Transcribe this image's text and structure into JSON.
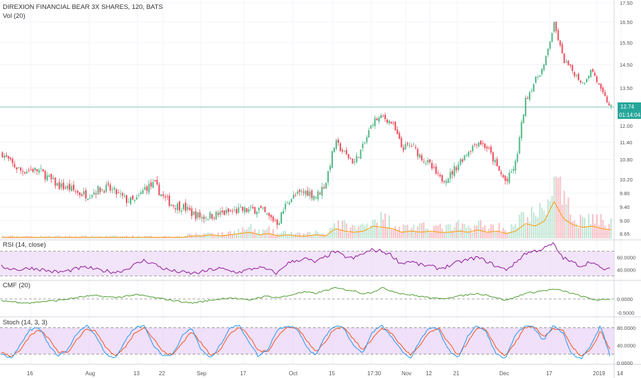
{
  "header": {
    "symbol_line": "DIREXION FINANCIAL BEAR 3X SHARES, 120, BATS",
    "volume_label": "Vol (20)"
  },
  "price_badges": {
    "last_price": "12.74",
    "countdown": "01:14:04"
  },
  "colors": {
    "up": "#53b987",
    "down": "#eb4d5c",
    "rsi_line": "#8e1599",
    "rsi_band": "#ecd9f7",
    "cmf_line": "#4c9c2e",
    "stoch_k": "#2196f3",
    "stoch_d": "#f4511e",
    "stoch_band": "#ead3f6",
    "volume_ma": "#ff9800",
    "price_line": "#5ab0a0",
    "badge": "#26a69a"
  },
  "chart_data": [
    {
      "type": "candlestick",
      "title": "DIREXION FINANCIAL BEAR 3X SHARES, 120, BATS",
      "y_ticks": [
        "17.50",
        "16.50",
        "15.50",
        "14.50",
        "13.50",
        "12.00",
        "11.40",
        "10.80",
        "10.20",
        "9.80",
        "9.40",
        "9.00",
        "8.65"
      ],
      "x_ticks": [
        "16",
        "Aug",
        "13",
        "22",
        "Sep",
        "17",
        "Oct",
        "15",
        "17:30",
        "Nov",
        "12",
        "21",
        "Dec",
        "17",
        "2019",
        "14"
      ],
      "last_price": 12.74,
      "series": [
        {
          "name": "price",
          "values": [
            11.0,
            10.65,
            10.45,
            10.5,
            10.45,
            10.2,
            10.0,
            9.95,
            9.8,
            9.75,
            9.9,
            9.95,
            9.8,
            9.6,
            9.55,
            9.95,
            10.05,
            9.65,
            9.45,
            9.4,
            9.2,
            9.1,
            9.15,
            9.2,
            9.25,
            9.3,
            9.3,
            9.35,
            9.1,
            8.95,
            9.6,
            9.75,
            9.85,
            9.7,
            10.1,
            11.4,
            11.0,
            10.7,
            11.3,
            12.2,
            12.35,
            12.1,
            11.2,
            11.3,
            10.9,
            10.6,
            10.2,
            10.3,
            10.7,
            11.1,
            11.45,
            11.2,
            10.55,
            10.1,
            10.7,
            13.0,
            13.8,
            14.5,
            16.4,
            14.7,
            14.2,
            13.7,
            14.3,
            13.3,
            12.74
          ]
        },
        {
          "name": "Vol (20)",
          "values": [
            1,
            1,
            1,
            1,
            1,
            1,
            1,
            1,
            1,
            1,
            1,
            1,
            1,
            1,
            1,
            1,
            1,
            1,
            1,
            1,
            2,
            2,
            3,
            2,
            3,
            4,
            5,
            3,
            4,
            2,
            3,
            2,
            2,
            3,
            2,
            8,
            6,
            5,
            6,
            10,
            9,
            8,
            5,
            6,
            5,
            6,
            5,
            5,
            6,
            5,
            7,
            5,
            6,
            4,
            6,
            12,
            10,
            14,
            30,
            16,
            11,
            9,
            10,
            8,
            7
          ]
        }
      ]
    },
    {
      "type": "line",
      "title": "RSI (14, close)",
      "y_ticks": [
        "60.0000",
        "40.0000"
      ],
      "series": [
        {
          "name": "RSI",
          "values": [
            45,
            42,
            40,
            43,
            41,
            38,
            36,
            38,
            42,
            44,
            40,
            38,
            36,
            40,
            48,
            55,
            50,
            42,
            38,
            36,
            34,
            36,
            40,
            42,
            38,
            36,
            40,
            44,
            40,
            34,
            50,
            55,
            58,
            52,
            60,
            70,
            62,
            58,
            66,
            72,
            70,
            64,
            50,
            54,
            48,
            46,
            42,
            46,
            52,
            56,
            60,
            54,
            46,
            40,
            50,
            66,
            70,
            74,
            82,
            60,
            52,
            46,
            54,
            42,
            40
          ]
        }
      ]
    },
    {
      "type": "line",
      "title": "CMF (20)",
      "y_ticks": [
        "0.0000",
        "-0.5000"
      ],
      "series": [
        {
          "name": "CMF",
          "values": [
            -0.05,
            -0.1,
            -0.12,
            -0.15,
            -0.1,
            -0.08,
            -0.05,
            0.0,
            0.05,
            0.1,
            0.12,
            0.08,
            0.05,
            0.1,
            0.15,
            0.12,
            0.05,
            0.0,
            -0.05,
            -0.1,
            -0.15,
            -0.1,
            -0.05,
            0.0,
            0.05,
            0.0,
            -0.05,
            0.05,
            0.1,
            0.05,
            0.1,
            0.2,
            0.25,
            0.2,
            0.3,
            0.4,
            0.35,
            0.3,
            0.2,
            0.25,
            0.4,
            0.3,
            0.2,
            0.15,
            0.1,
            0.05,
            0.0,
            0.05,
            0.1,
            0.15,
            0.2,
            0.15,
            0.05,
            -0.05,
            0.05,
            0.2,
            0.25,
            0.3,
            0.35,
            0.3,
            0.2,
            0.1,
            0.0,
            -0.05,
            0.0
          ]
        }
      ]
    },
    {
      "type": "line",
      "title": "Stoch (14, 3, 3)",
      "y_ticks": [
        "80.0000",
        "40.0000",
        "0.0000"
      ],
      "series": [
        {
          "name": "%K",
          "values": [
            20,
            10,
            40,
            75,
            80,
            40,
            15,
            30,
            70,
            85,
            60,
            20,
            10,
            50,
            80,
            85,
            40,
            15,
            20,
            60,
            80,
            30,
            10,
            40,
            80,
            85,
            50,
            15,
            30,
            75,
            85,
            80,
            40,
            15,
            60,
            85,
            80,
            40,
            20,
            70,
            85,
            60,
            30,
            10,
            50,
            80,
            75,
            30,
            10,
            60,
            85,
            70,
            20,
            10,
            60,
            85,
            80,
            50,
            85,
            70,
            20,
            10,
            40,
            85,
            15
          ]
        },
        {
          "name": "%D",
          "values": [
            25,
            15,
            30,
            60,
            75,
            55,
            25,
            25,
            55,
            78,
            70,
            35,
            15,
            35,
            68,
            82,
            55,
            25,
            18,
            45,
            72,
            45,
            18,
            30,
            65,
            82,
            62,
            28,
            25,
            60,
            80,
            82,
            55,
            25,
            45,
            78,
            82,
            55,
            28,
            55,
            80,
            68,
            40,
            18,
            38,
            70,
            78,
            45,
            18,
            45,
            78,
            75,
            35,
            15,
            45,
            78,
            82,
            60,
            78,
            75,
            35,
            15,
            30,
            72,
            30
          ]
        }
      ]
    }
  ]
}
